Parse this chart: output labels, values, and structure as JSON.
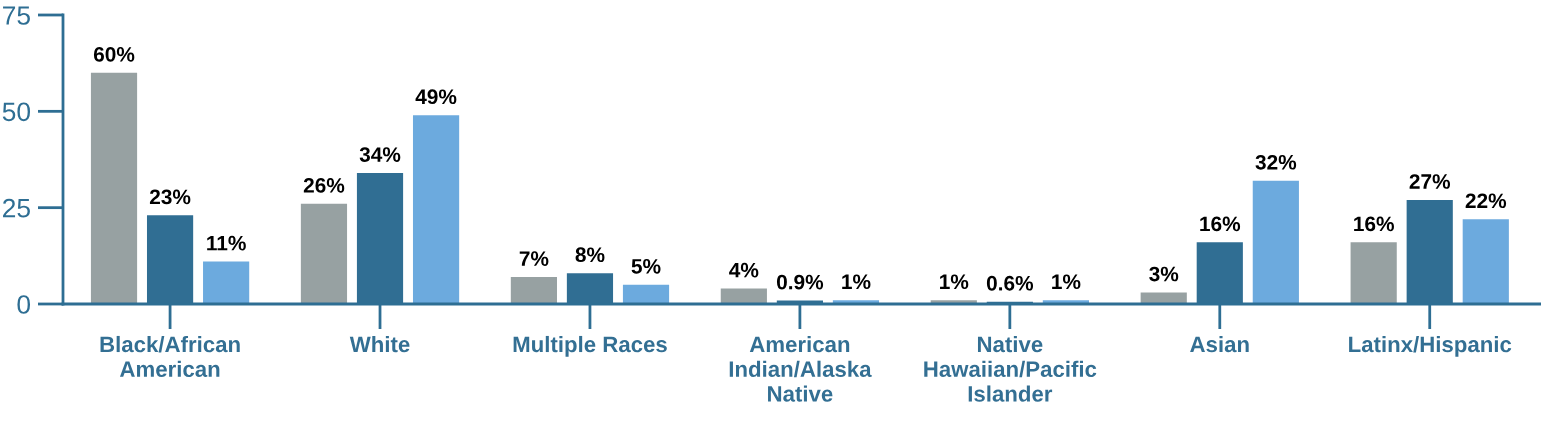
{
  "chart_data": {
    "type": "bar",
    "categories": [
      "Black/African\nAmerican",
      "White",
      "Multiple Races",
      "American\nIndian/Alaska\nNative",
      "Native\nHawaiian/Pacific\nIslander",
      "Asian",
      "Latinx/Hispanic"
    ],
    "series": [
      {
        "color": "#97a1a2",
        "values": [
          60,
          26,
          7,
          4,
          1,
          3,
          16
        ],
        "value_labels": [
          "60%",
          "26%",
          "7%",
          "4%",
          "1%",
          "3%",
          "16%"
        ]
      },
      {
        "color": "#306e93",
        "values": [
          23,
          34,
          8,
          0.9,
          0.6,
          16,
          27
        ],
        "value_labels": [
          "23%",
          "34%",
          "8%",
          "0.9%",
          "0.6%",
          "16%",
          "27%"
        ]
      },
      {
        "color": "#6caade",
        "values": [
          11,
          49,
          5,
          1,
          1,
          32,
          22
        ],
        "value_labels": [
          "11%",
          "49%",
          "5%",
          "1%",
          "1%",
          "32%",
          "22%"
        ]
      }
    ],
    "ylim": [
      0,
      75
    ],
    "yticks": [
      0,
      25,
      50,
      75
    ]
  }
}
